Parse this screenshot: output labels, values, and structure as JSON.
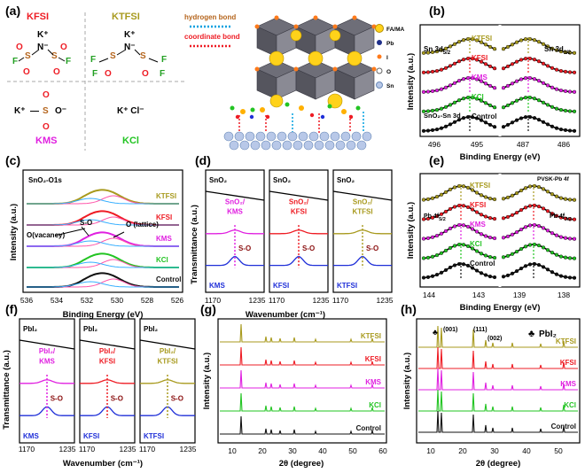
{
  "colors": {
    "KTFSI": "#a89a1e",
    "KFSI": "#ee1c24",
    "KMS": "#e020e0",
    "KCl": "#22c422",
    "Control": "#111111",
    "blue": "#1f2fd8",
    "brown": "#b5651d"
  },
  "panel_a": {
    "label": "(a)",
    "kfsi": "KFSI",
    "ktfsi": "KTFSI",
    "kms": "KMS",
    "kcl": "KCl",
    "kcl_formula": "K⁺ Cl⁻",
    "k_ion": "K⁺",
    "n_ion": "N⁻",
    "o_ion": "O⁻",
    "legend_hbond": "hydrogen bond",
    "legend_coord": "coordinate bond",
    "species": [
      "FA/MA",
      "Pb",
      "I",
      "O",
      "Sn"
    ]
  },
  "panel_b": {
    "label": "(b)",
    "ylabel": "Intensity (a.u.)",
    "xlabel": "Binding Energy (eV)",
    "ticks_left": [
      "496",
      "495"
    ],
    "ticks_right": [
      "487",
      "486"
    ],
    "series": [
      "KTFSI",
      "KFSI",
      "KMS",
      "KCl",
      "Control"
    ],
    "ann_left": "Sn 3d",
    "ann_left_sub": "5/2",
    "ann_right": "Sn 3d",
    "ann_right_sub": "3/2",
    "ann_bottom": "SnO₂-Sn 3d"
  },
  "panel_c": {
    "label": "(c)",
    "title": "SnO₂-O1s",
    "ylabel": "Intensity (a.u.)",
    "xlabel": "Binding Energy (eV)",
    "ticks": [
      "536",
      "534",
      "532",
      "530",
      "528",
      "526"
    ],
    "series": [
      "KTFSI",
      "KFSI",
      "KMS",
      "KCl",
      "Control"
    ],
    "ann_vacancy": "O(vacancy)",
    "ann_so": "S-O",
    "ann_lattice": "O (lattice)"
  },
  "panel_d": {
    "label": "(d)",
    "ylabel": "Transmittance (a.u.)",
    "xlabel": "Wavenumber (cm⁻¹)",
    "subtitle": "SnO₂",
    "sub1_label": "SnO₂/",
    "sub1_label2": "KMS",
    "sub2_label": "SnO₂/",
    "sub2_label2": "KFSI",
    "sub3_label": "SnO₂/",
    "sub3_label2": "KTFSI",
    "so": "S-O",
    "bottom1": "KMS",
    "bottom2": "KFSI",
    "bottom3": "KTFSI",
    "ticks": [
      "1170",
      "1235"
    ]
  },
  "panel_e": {
    "label": "(e)",
    "ylabel": "Intensity (a.u.)",
    "xlabel": "Binding Energy (eV)",
    "ticks_left": [
      "144",
      "143"
    ],
    "ticks_right": [
      "139",
      "138"
    ],
    "series": [
      "KTFSI",
      "KFSI",
      "KMS",
      "KCl",
      "Control"
    ],
    "ann_top": "PVSK-Pb 4f",
    "ann_left": "Pb 4f",
    "ann_left_sub": "5/2",
    "ann_right": "Pb 4f",
    "ann_right_sub": "7/2"
  },
  "panel_f": {
    "label": "(f)",
    "ylabel": "Transmittance (a.u.)",
    "xlabel": "Wavenumber (cm⁻¹)",
    "subtitle": "PbI₂",
    "sub1_label": "PbI₂/",
    "sub1_label2": "KMS",
    "sub2_label": "PbI₂/",
    "sub2_label2": "KFSI",
    "sub3_label": "PbI₂/",
    "sub3_label2": "KTFSI",
    "so": "S-O",
    "bottom1": "KMS",
    "bottom2": "KFSI",
    "bottom3": "KTFSI",
    "ticks": [
      "1170",
      "1235"
    ]
  },
  "panel_g": {
    "label": "(g)",
    "ylabel": "Intensity (a.u.)",
    "xlabel": "2θ (degree)",
    "ticks": [
      "10",
      "20",
      "30",
      "40",
      "50",
      "60"
    ],
    "series": [
      "KTFSI",
      "KFSI",
      "KMS",
      "KCl",
      "Control"
    ]
  },
  "panel_h": {
    "label": "(h)",
    "ylabel": "Intensity (a.u.)",
    "xlabel": "2θ (degree)",
    "ticks": [
      "10",
      "20",
      "30",
      "40",
      "50"
    ],
    "series": [
      "KTFSI",
      "KFSI",
      "KMS",
      "KCl",
      "Control"
    ],
    "peak_001": "(001)",
    "peak_111": "(111)",
    "peak_002": "(002)",
    "legend_symbol": "♣",
    "legend_text": "PbI₂"
  }
}
